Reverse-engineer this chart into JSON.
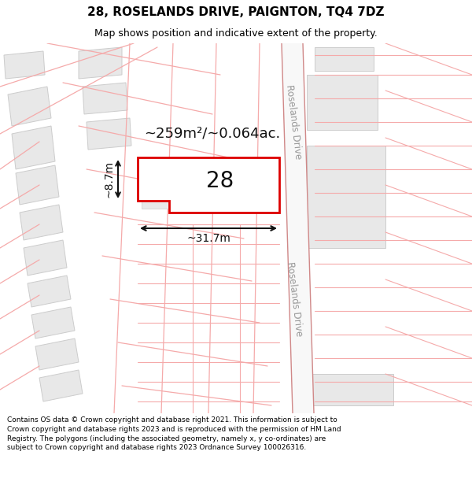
{
  "title_line1": "28, ROSELANDS DRIVE, PAIGNTON, TQ4 7DZ",
  "title_line2": "Map shows position and indicative extent of the property.",
  "copyright_text": "Contains OS data © Crown copyright and database right 2021. This information is subject to Crown copyright and database rights 2023 and is reproduced with the permission of HM Land Registry. The polygons (including the associated geometry, namely x, y co-ordinates) are subject to Crown copyright and database rights 2023 Ordnance Survey 100026316.",
  "plot_number": "28",
  "area_label": "~259m²/~0.064ac.",
  "width_label": "~31.7m",
  "height_label": "~8.7m",
  "road_name": "Roselands Drive",
  "map_bg": "#ffffff",
  "plot_fill": "#ffffff",
  "plot_stroke": "#dd0000",
  "road_line_color": "#f5aaaa",
  "building_fill": "#e8e8e8",
  "building_edge": "#cccccc",
  "road_strip_color": "#f0f0f0",
  "title_fontsize": 11,
  "subtitle_fontsize": 9,
  "footer_fontsize": 6.5
}
